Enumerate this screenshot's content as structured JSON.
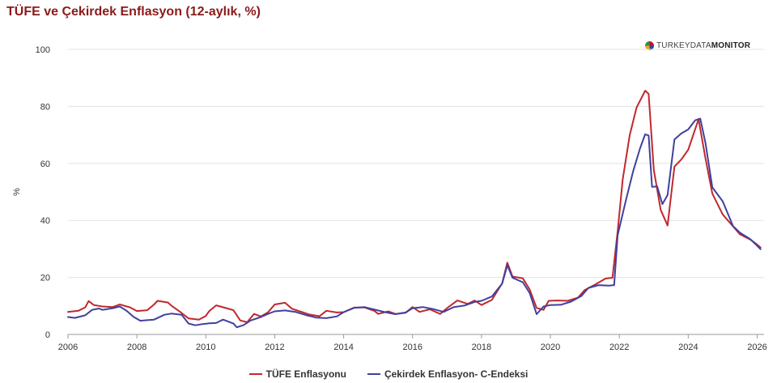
{
  "title": "TÜFE ve Çekirdek Enflasyon (12-aylık, %)",
  "brand": {
    "light": "TURKEYDATA",
    "bold": "MONITOR"
  },
  "chart_data": {
    "type": "line",
    "ylabel": "%",
    "ylim": [
      0,
      100
    ],
    "yticks": [
      0,
      20,
      40,
      60,
      80,
      100
    ],
    "xlim": [
      2006,
      2026.2
    ],
    "xticks": [
      2006,
      2008,
      2010,
      2012,
      2014,
      2016,
      2018,
      2020,
      2022,
      2024,
      2026
    ],
    "grid": "horizontal",
    "legend_position": "bottom",
    "series": [
      {
        "name": "TÜFE Enflasyonu",
        "color": "#c0282d",
        "points": [
          [
            2006.0,
            7.9
          ],
          [
            2006.3,
            8.3
          ],
          [
            2006.5,
            9.5
          ],
          [
            2006.6,
            11.7
          ],
          [
            2006.75,
            10.3
          ],
          [
            2007.0,
            9.8
          ],
          [
            2007.3,
            9.6
          ],
          [
            2007.5,
            10.5
          ],
          [
            2007.8,
            9.5
          ],
          [
            2008.0,
            8.2
          ],
          [
            2008.3,
            8.5
          ],
          [
            2008.5,
            10.5
          ],
          [
            2008.6,
            11.8
          ],
          [
            2008.9,
            11.2
          ],
          [
            2009.0,
            10.1
          ],
          [
            2009.3,
            7.5
          ],
          [
            2009.5,
            5.6
          ],
          [
            2009.8,
            5.2
          ],
          [
            2010.0,
            6.5
          ],
          [
            2010.1,
            8.2
          ],
          [
            2010.3,
            10.2
          ],
          [
            2010.6,
            9.2
          ],
          [
            2010.8,
            8.5
          ],
          [
            2011.0,
            4.9
          ],
          [
            2011.2,
            4.3
          ],
          [
            2011.4,
            7.2
          ],
          [
            2011.6,
            6.3
          ],
          [
            2011.8,
            7.7
          ],
          [
            2012.0,
            10.5
          ],
          [
            2012.3,
            11.1
          ],
          [
            2012.5,
            9.0
          ],
          [
            2012.8,
            7.8
          ],
          [
            2013.0,
            7.0
          ],
          [
            2013.3,
            6.4
          ],
          [
            2013.5,
            8.3
          ],
          [
            2013.8,
            7.7
          ],
          [
            2014.0,
            7.8
          ],
          [
            2014.3,
            9.4
          ],
          [
            2014.6,
            9.5
          ],
          [
            2014.9,
            8.2
          ],
          [
            2015.0,
            7.2
          ],
          [
            2015.3,
            8.1
          ],
          [
            2015.5,
            7.2
          ],
          [
            2015.8,
            7.6
          ],
          [
            2016.0,
            9.6
          ],
          [
            2016.2,
            7.9
          ],
          [
            2016.5,
            8.8
          ],
          [
            2016.8,
            7.2
          ],
          [
            2017.0,
            9.2
          ],
          [
            2017.3,
            11.9
          ],
          [
            2017.6,
            10.7
          ],
          [
            2017.8,
            11.9
          ],
          [
            2018.0,
            10.3
          ],
          [
            2018.3,
            12.1
          ],
          [
            2018.6,
            17.9
          ],
          [
            2018.75,
            25.2
          ],
          [
            2018.9,
            20.3
          ],
          [
            2019.2,
            19.7
          ],
          [
            2019.4,
            15.7
          ],
          [
            2019.6,
            9.3
          ],
          [
            2019.8,
            8.6
          ],
          [
            2019.95,
            11.8
          ],
          [
            2020.2,
            11.9
          ],
          [
            2020.5,
            11.8
          ],
          [
            2020.8,
            12.9
          ],
          [
            2021.0,
            15.6
          ],
          [
            2021.3,
            17.5
          ],
          [
            2021.6,
            19.6
          ],
          [
            2021.8,
            19.9
          ],
          [
            2021.95,
            36.1
          ],
          [
            2022.1,
            54.4
          ],
          [
            2022.3,
            69.9
          ],
          [
            2022.5,
            79.6
          ],
          [
            2022.75,
            85.5
          ],
          [
            2022.85,
            84.4
          ],
          [
            2023.0,
            57.7
          ],
          [
            2023.2,
            43.7
          ],
          [
            2023.4,
            38.2
          ],
          [
            2023.6,
            58.9
          ],
          [
            2023.8,
            61.4
          ],
          [
            2024.0,
            64.8
          ],
          [
            2024.3,
            75.5
          ],
          [
            2024.5,
            61.8
          ],
          [
            2024.7,
            49.4
          ],
          [
            2025.0,
            42.1
          ],
          [
            2025.3,
            37.9
          ],
          [
            2025.5,
            35.1
          ],
          [
            2025.8,
            33.3
          ],
          [
            2026.0,
            31.5
          ],
          [
            2026.1,
            30.5
          ]
        ]
      },
      {
        "name": "Çekirdek Enflasyon- C-Endeksi",
        "color": "#4040a0",
        "points": [
          [
            2006.0,
            6.1
          ],
          [
            2006.2,
            5.8
          ],
          [
            2006.5,
            6.7
          ],
          [
            2006.7,
            8.6
          ],
          [
            2006.9,
            9.1
          ],
          [
            2007.0,
            8.6
          ],
          [
            2007.3,
            9.2
          ],
          [
            2007.5,
            9.8
          ],
          [
            2007.7,
            8.3
          ],
          [
            2007.9,
            6.2
          ],
          [
            2008.1,
            4.8
          ],
          [
            2008.3,
            5.0
          ],
          [
            2008.5,
            5.2
          ],
          [
            2008.8,
            6.9
          ],
          [
            2009.0,
            7.3
          ],
          [
            2009.3,
            6.9
          ],
          [
            2009.5,
            3.8
          ],
          [
            2009.7,
            3.2
          ],
          [
            2009.9,
            3.6
          ],
          [
            2010.1,
            3.9
          ],
          [
            2010.3,
            4.0
          ],
          [
            2010.5,
            5.2
          ],
          [
            2010.8,
            3.8
          ],
          [
            2010.9,
            2.5
          ],
          [
            2011.1,
            3.3
          ],
          [
            2011.3,
            4.9
          ],
          [
            2011.6,
            6.1
          ],
          [
            2011.8,
            7.2
          ],
          [
            2012.0,
            8.1
          ],
          [
            2012.3,
            8.4
          ],
          [
            2012.6,
            7.9
          ],
          [
            2012.9,
            6.8
          ],
          [
            2013.2,
            5.9
          ],
          [
            2013.5,
            5.7
          ],
          [
            2013.8,
            6.3
          ],
          [
            2014.0,
            7.8
          ],
          [
            2014.3,
            9.3
          ],
          [
            2014.6,
            9.6
          ],
          [
            2014.9,
            8.7
          ],
          [
            2015.2,
            7.8
          ],
          [
            2015.5,
            7.1
          ],
          [
            2015.8,
            7.7
          ],
          [
            2016.0,
            9.2
          ],
          [
            2016.3,
            9.6
          ],
          [
            2016.6,
            8.9
          ],
          [
            2016.9,
            7.9
          ],
          [
            2017.2,
            9.6
          ],
          [
            2017.5,
            10.1
          ],
          [
            2017.8,
            11.4
          ],
          [
            2018.0,
            11.8
          ],
          [
            2018.3,
            13.3
          ],
          [
            2018.6,
            17.8
          ],
          [
            2018.75,
            24.3
          ],
          [
            2018.9,
            19.9
          ],
          [
            2019.2,
            18.3
          ],
          [
            2019.4,
            14.5
          ],
          [
            2019.6,
            7.1
          ],
          [
            2019.8,
            9.8
          ],
          [
            2020.0,
            10.3
          ],
          [
            2020.3,
            10.4
          ],
          [
            2020.6,
            11.5
          ],
          [
            2020.9,
            13.5
          ],
          [
            2021.1,
            16.3
          ],
          [
            2021.4,
            17.3
          ],
          [
            2021.7,
            17.1
          ],
          [
            2021.85,
            17.3
          ],
          [
            2021.95,
            34.8
          ],
          [
            2022.2,
            47.5
          ],
          [
            2022.4,
            57.2
          ],
          [
            2022.6,
            65.2
          ],
          [
            2022.75,
            70.2
          ],
          [
            2022.85,
            69.8
          ],
          [
            2022.95,
            51.8
          ],
          [
            2023.1,
            51.9
          ],
          [
            2023.25,
            45.7
          ],
          [
            2023.4,
            48.9
          ],
          [
            2023.6,
            68.4
          ],
          [
            2023.8,
            70.5
          ],
          [
            2024.0,
            71.9
          ],
          [
            2024.2,
            75.1
          ],
          [
            2024.35,
            75.7
          ],
          [
            2024.5,
            67.2
          ],
          [
            2024.7,
            51.6
          ],
          [
            2025.0,
            46.7
          ],
          [
            2025.3,
            38.0
          ],
          [
            2025.5,
            35.7
          ],
          [
            2025.8,
            33.4
          ],
          [
            2026.0,
            31.1
          ],
          [
            2026.1,
            29.9
          ]
        ]
      }
    ]
  }
}
